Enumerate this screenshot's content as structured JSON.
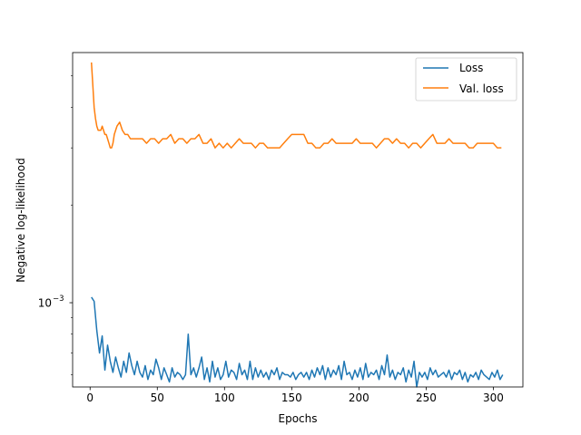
{
  "chart_data": {
    "type": "line",
    "title": "",
    "xlabel": "Epochs",
    "ylabel": "Negative log-likelihood",
    "xlim": [
      -13,
      322
    ],
    "ylim": [
      0.00055,
      0.0059
    ],
    "y_scale": "log",
    "xticks": [
      0,
      50,
      100,
      150,
      200,
      250,
      300
    ],
    "xtick_labels": [
      "0",
      "50",
      "100",
      "150",
      "200",
      "250",
      "300"
    ],
    "yticks_major": [
      0.001
    ],
    "ytick_labels_major": [
      "10",
      "−3"
    ],
    "legend_position": "top-right",
    "grid": false,
    "series": [
      {
        "name": "Loss",
        "color": "#1f77b4",
        "x": [
          1,
          3,
          5,
          7,
          9,
          11,
          13,
          15,
          17,
          19,
          21,
          23,
          25,
          27,
          29,
          31,
          33,
          35,
          37,
          39,
          41,
          43,
          45,
          47,
          49,
          51,
          53,
          55,
          57,
          59,
          61,
          63,
          65,
          67,
          69,
          71,
          73,
          75,
          77,
          79,
          81,
          83,
          85,
          87,
          89,
          91,
          93,
          95,
          97,
          99,
          101,
          103,
          105,
          107,
          109,
          111,
          113,
          115,
          117,
          119,
          121,
          123,
          125,
          127,
          129,
          131,
          133,
          135,
          137,
          139,
          141,
          143,
          145,
          147,
          149,
          151,
          153,
          155,
          157,
          159,
          161,
          163,
          165,
          167,
          169,
          171,
          173,
          175,
          177,
          179,
          181,
          183,
          185,
          187,
          189,
          191,
          193,
          195,
          197,
          199,
          201,
          203,
          205,
          207,
          209,
          211,
          213,
          215,
          217,
          219,
          221,
          223,
          225,
          227,
          229,
          231,
          233,
          235,
          237,
          239,
          241,
          243,
          245,
          247,
          249,
          251,
          253,
          255,
          257,
          259,
          261,
          263,
          265,
          267,
          269,
          271,
          273,
          275,
          277,
          279,
          281,
          283,
          285,
          287,
          289,
          291,
          293,
          295,
          297,
          299,
          301,
          303,
          305,
          307
        ],
        "y": [
          0.00104,
          0.00101,
          0.00082,
          0.0007,
          0.00079,
          0.00062,
          0.00074,
          0.00066,
          0.00061,
          0.00068,
          0.00063,
          0.00059,
          0.00066,
          0.00061,
          0.0007,
          0.00064,
          0.0006,
          0.00066,
          0.00061,
          0.00059,
          0.00064,
          0.00058,
          0.00062,
          0.0006,
          0.00067,
          0.00063,
          0.00058,
          0.00063,
          0.0006,
          0.00057,
          0.00063,
          0.00059,
          0.00061,
          0.0006,
          0.00058,
          0.0006,
          0.0008,
          0.0006,
          0.00063,
          0.00059,
          0.00063,
          0.00068,
          0.00058,
          0.00063,
          0.00057,
          0.00066,
          0.00059,
          0.00063,
          0.00058,
          0.0006,
          0.00066,
          0.00059,
          0.00062,
          0.00061,
          0.00058,
          0.00065,
          0.0006,
          0.00062,
          0.00058,
          0.00066,
          0.00058,
          0.00063,
          0.00059,
          0.00062,
          0.00059,
          0.00061,
          0.00058,
          0.00062,
          0.0006,
          0.00063,
          0.00058,
          0.00061,
          0.0006,
          0.0006,
          0.00059,
          0.00061,
          0.00058,
          0.0006,
          0.00061,
          0.00059,
          0.00061,
          0.00058,
          0.00062,
          0.00059,
          0.00063,
          0.0006,
          0.00064,
          0.00058,
          0.00063,
          0.00059,
          0.00062,
          0.0006,
          0.00064,
          0.00058,
          0.00066,
          0.0006,
          0.00061,
          0.00058,
          0.00062,
          0.00059,
          0.00063,
          0.00058,
          0.00065,
          0.00059,
          0.00061,
          0.0006,
          0.00062,
          0.00058,
          0.00064,
          0.0006,
          0.00069,
          0.00059,
          0.00062,
          0.00058,
          0.00061,
          0.0006,
          0.00063,
          0.00057,
          0.00062,
          0.00059,
          0.00066,
          0.00055,
          0.00061,
          0.00059,
          0.00061,
          0.00058,
          0.00063,
          0.0006,
          0.00062,
          0.00059,
          0.0006,
          0.00061,
          0.00059,
          0.00062,
          0.00058,
          0.00061,
          0.0006,
          0.00062,
          0.00058,
          0.00061,
          0.00057,
          0.0006,
          0.00059,
          0.00061,
          0.00058,
          0.00062,
          0.0006,
          0.00059,
          0.00058,
          0.00061,
          0.00059,
          0.00062,
          0.00058,
          0.0006
        ]
      },
      {
        "name": "Val. loss",
        "color": "#ff7f0e",
        "x": [
          1,
          2,
          3,
          4,
          5,
          6,
          7,
          8,
          9,
          10,
          11,
          12,
          13,
          14,
          15,
          16,
          17,
          18,
          19,
          20,
          22,
          24,
          26,
          28,
          30,
          33,
          36,
          39,
          42,
          45,
          48,
          51,
          54,
          57,
          60,
          63,
          66,
          69,
          72,
          75,
          78,
          81,
          84,
          87,
          90,
          93,
          96,
          99,
          102,
          105,
          108,
          111,
          114,
          117,
          120,
          123,
          126,
          129,
          132,
          135,
          138,
          141,
          144,
          147,
          150,
          153,
          156,
          159,
          162,
          165,
          168,
          171,
          174,
          177,
          180,
          183,
          186,
          189,
          192,
          195,
          198,
          201,
          204,
          207,
          210,
          213,
          216,
          219,
          222,
          225,
          228,
          231,
          234,
          237,
          240,
          243,
          246,
          249,
          252,
          255,
          258,
          261,
          264,
          267,
          270,
          273,
          276,
          279,
          282,
          285,
          288,
          291,
          294,
          297,
          300,
          303,
          306
        ],
        "y": [
          0.0055,
          0.0047,
          0.004,
          0.0037,
          0.0035,
          0.0034,
          0.0034,
          0.0034,
          0.0035,
          0.0034,
          0.0033,
          0.0033,
          0.0032,
          0.0031,
          0.003,
          0.003,
          0.0031,
          0.0033,
          0.0034,
          0.0035,
          0.0036,
          0.0034,
          0.0033,
          0.0033,
          0.0032,
          0.0032,
          0.0032,
          0.0032,
          0.0031,
          0.0032,
          0.0032,
          0.0031,
          0.0032,
          0.0032,
          0.0033,
          0.0031,
          0.0032,
          0.0032,
          0.0031,
          0.0032,
          0.0032,
          0.0033,
          0.0031,
          0.0031,
          0.0032,
          0.003,
          0.0031,
          0.003,
          0.0031,
          0.003,
          0.0031,
          0.0032,
          0.0031,
          0.0031,
          0.0031,
          0.003,
          0.0031,
          0.0031,
          0.003,
          0.003,
          0.003,
          0.003,
          0.0031,
          0.0032,
          0.0033,
          0.0033,
          0.0033,
          0.0033,
          0.0031,
          0.0031,
          0.003,
          0.003,
          0.0031,
          0.0031,
          0.0032,
          0.0031,
          0.0031,
          0.0031,
          0.0031,
          0.0031,
          0.0032,
          0.0031,
          0.0031,
          0.0031,
          0.0031,
          0.003,
          0.0031,
          0.0032,
          0.0032,
          0.0031,
          0.0032,
          0.0031,
          0.0031,
          0.003,
          0.0031,
          0.0031,
          0.003,
          0.0031,
          0.0032,
          0.0033,
          0.0031,
          0.0031,
          0.0031,
          0.0032,
          0.0031,
          0.0031,
          0.0031,
          0.0031,
          0.003,
          0.003,
          0.0031,
          0.0031,
          0.0031,
          0.0031,
          0.0031,
          0.003,
          0.003
        ]
      }
    ]
  }
}
